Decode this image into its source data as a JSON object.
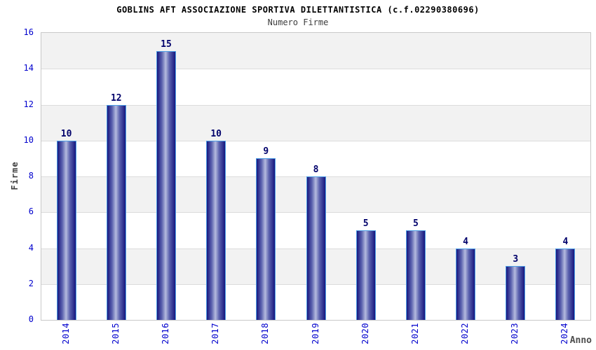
{
  "chart_data": {
    "type": "bar",
    "title": "GOBLINS AFT ASSOCIAZIONE SPORTIVA DILETTANTISTICA (c.f.02290380696)",
    "subtitle": "Numero Firme",
    "xlabel": "Anno",
    "ylabel": "Firme",
    "categories": [
      "2014",
      "2015",
      "2016",
      "2017",
      "2018",
      "2019",
      "2020",
      "2021",
      "2022",
      "2023",
      "2024"
    ],
    "values": [
      10,
      12,
      15,
      10,
      9,
      8,
      5,
      5,
      4,
      3,
      4
    ],
    "ylim": [
      0,
      16
    ],
    "yticks": [
      0,
      2,
      4,
      6,
      8,
      10,
      12,
      14,
      16
    ],
    "grid": "horizontal alternating bands every 2 units, gridline at even ticks",
    "legend": "none",
    "bar_labels": "value above each bar"
  },
  "colors": {
    "title": "#000000",
    "subtitle": "#3d3d3d",
    "axis_tick_label": "#0000cd",
    "value_label": "#00006b",
    "ylabel_color": "#3d3d3d",
    "xlabel_color": "#4d4d4d",
    "bar_dark": "#17177e",
    "bar_mid": "#5a61ae",
    "bar_light": "#b4bade",
    "bar_border": "#4d9fe6",
    "band_gray": "#f2f2f2",
    "band_white": "#ffffff",
    "plot_border": "#c9c9c9",
    "gridline": "#dcdcdc"
  }
}
